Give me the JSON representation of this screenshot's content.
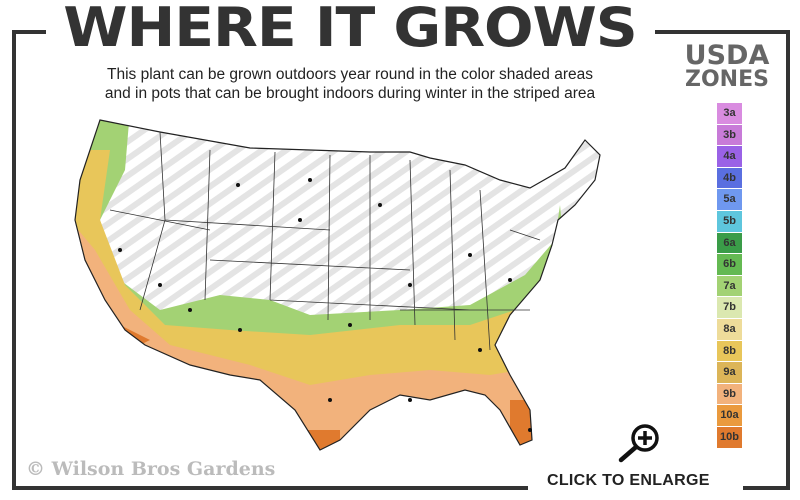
{
  "title": "WHERE IT GROWS",
  "subtitle_lines": [
    "This plant can be grown outdoors year round in the color shaded areas",
    "and in pots that can be brought indoors during winter in the striped area"
  ],
  "legend": {
    "title_line1": "USDA",
    "title_line2": "ZONES",
    "zones": [
      {
        "label": "3a",
        "color": "#d98ce0"
      },
      {
        "label": "3b",
        "color": "#c87bd8"
      },
      {
        "label": "4a",
        "color": "#9a62e6"
      },
      {
        "label": "4b",
        "color": "#5a6fe0"
      },
      {
        "label": "5a",
        "color": "#6f98ef"
      },
      {
        "label": "5b",
        "color": "#5ec6dd"
      },
      {
        "label": "6a",
        "color": "#3a9c48"
      },
      {
        "label": "6b",
        "color": "#64b952"
      },
      {
        "label": "7a",
        "color": "#a3d274"
      },
      {
        "label": "7b",
        "color": "#dbe8b0"
      },
      {
        "label": "8a",
        "color": "#eedc9a"
      },
      {
        "label": "8b",
        "color": "#e8c65a"
      },
      {
        "label": "9a",
        "color": "#dcb558"
      },
      {
        "label": "9b",
        "color": "#f2b27c"
      },
      {
        "label": "10a",
        "color": "#ea9a3e"
      },
      {
        "label": "10b",
        "color": "#e07a2e"
      }
    ]
  },
  "copyright": "© Wilson Bros Gardens",
  "enlarge_label": "CLICK TO ENLARGE",
  "icons": {
    "enlarge": "magnifier-plus-icon"
  }
}
